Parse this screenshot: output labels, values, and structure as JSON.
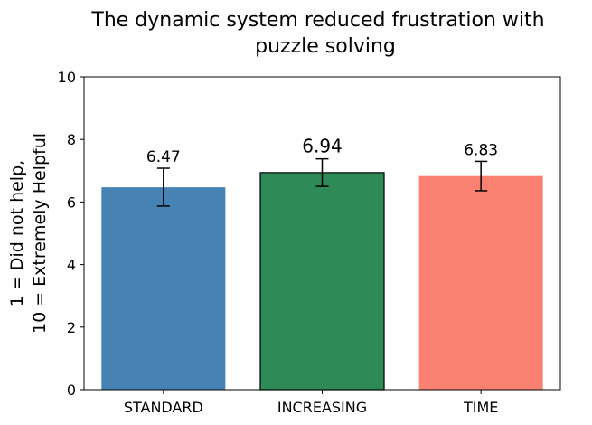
{
  "chart_data": {
    "type": "bar",
    "title_lines": [
      "The dynamic system reduced frustration with",
      "puzzle solving"
    ],
    "ylabel_lines": [
      "1 = Did not help,",
      "10 = Extremely Helpful"
    ],
    "xlabel": "",
    "categories": [
      "STANDARD",
      "INCREASING",
      "TIME"
    ],
    "values": [
      6.47,
      6.94,
      6.83
    ],
    "value_labels": [
      "6.47",
      "6.94",
      "6.83"
    ],
    "error_low": [
      5.87,
      6.5,
      6.36
    ],
    "error_high": [
      7.08,
      7.38,
      7.3
    ],
    "ylim": [
      0,
      10
    ],
    "yticks": [
      0,
      2,
      4,
      6,
      8,
      10
    ],
    "ytick_labels": [
      "0",
      "2",
      "4",
      "6",
      "8",
      "10"
    ],
    "bar_colors": [
      "#4682b4",
      "#2e8b57",
      "#fa8072"
    ],
    "highlighted_index": 1,
    "grid": false
  }
}
